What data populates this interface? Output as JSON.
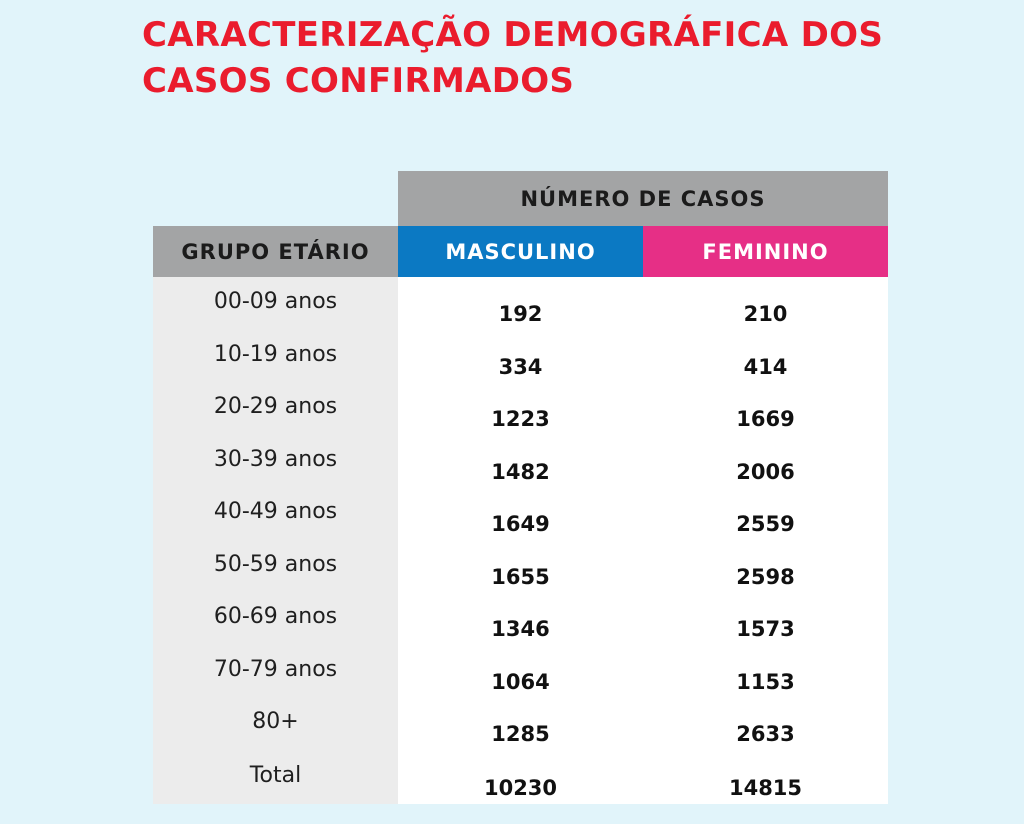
{
  "title": {
    "line1": "CARACTERIZAÇÃO DEMOGRÁFICA DOS",
    "line2": "CASOS CONFIRMADOS"
  },
  "table": {
    "header_cases": "NÚMERO DE CASOS",
    "header_group": "GRUPO ETÁRIO",
    "header_male": "MASCULINO",
    "header_female": "FEMININO",
    "rows": [
      {
        "age": "00-09 anos",
        "male": "192",
        "female": "210"
      },
      {
        "age": "10-19 anos",
        "male": "334",
        "female": "414"
      },
      {
        "age": "20-29 anos",
        "male": "1223",
        "female": "1669"
      },
      {
        "age": "30-39 anos",
        "male": "1482",
        "female": "2006"
      },
      {
        "age": "40-49 anos",
        "male": "1649",
        "female": "2559"
      },
      {
        "age": "50-59 anos",
        "male": "1655",
        "female": "2598"
      },
      {
        "age": "60-69 anos",
        "male": "1346",
        "female": "1573"
      },
      {
        "age": "70-79 anos",
        "male": "1064",
        "female": "1153"
      },
      {
        "age": "80+",
        "male": "1285",
        "female": "2633"
      },
      {
        "age": "Total",
        "male": "10230",
        "female": "14815"
      }
    ]
  },
  "colors": {
    "background": "#e1f4fa",
    "title": "#ea1c2d",
    "header_gray": "#a3a4a5",
    "male_blue": "#0b79c3",
    "female_pink": "#e62f86",
    "age_column": "#ececec"
  }
}
